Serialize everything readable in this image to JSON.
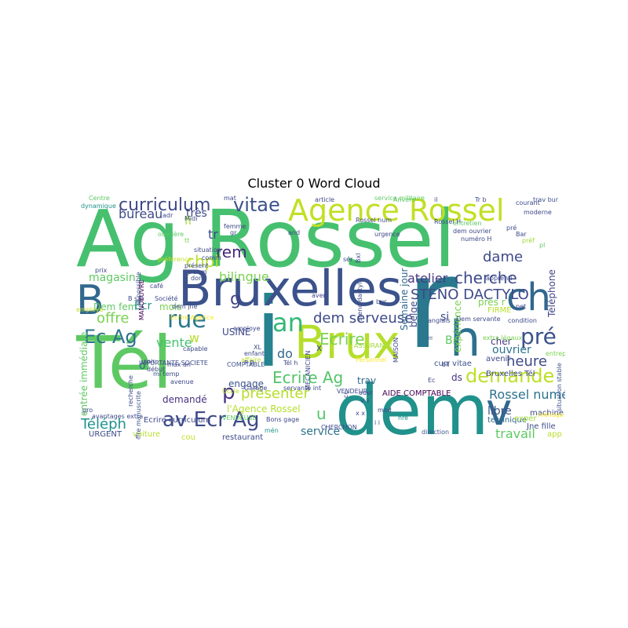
{
  "title": "Cluster 0 Word Cloud",
  "palette": "viridis",
  "words": [
    "Ag Rossel",
    "Tél",
    "i",
    "r",
    "dem",
    "Bruxelles",
    "Brux",
    "h",
    "ch",
    "Agence Rossel",
    "curriculum",
    "vitae",
    "B",
    "an",
    "rue",
    "pré",
    "Ec Ag",
    "av Ecr Ag",
    "demande",
    "Ecrire",
    "dem serveuse",
    "Ecrire Ag",
    "v",
    "rem",
    "chpl",
    "cherche",
    "STENO DACTYLO",
    "présenter",
    "p",
    "bilingue",
    "heure",
    "atelier",
    "vente",
    "Téléph",
    "offre",
    "bureau",
    "dame",
    "travail",
    "magasin",
    "service",
    "l'Agence Rossel",
    "Rossel numéro",
    "ouvrier",
    "libre",
    "Téléphone",
    "expérience",
    "Semaine jour",
    "belge",
    "entrée immédiate",
    "Dem fem",
    "Ecr",
    "mois",
    "très",
    "fi",
    "tr",
    "engage",
    "USINE",
    "demandé",
    "do",
    "si",
    "g",
    "w",
    "u",
    "x",
    "o",
    "ds",
    "trav",
    "près r",
    "FIRME",
    "cher",
    "Br",
    "avenir",
    "curr vitae",
    "Bruxelles Tél",
    "AIDE COMPTABLE",
    "machine",
    "Jne fille",
    "app",
    "technique",
    "expér",
    "URGENT",
    "voiture",
    "restaurant",
    "cou",
    "Ecrire curriculum",
    "VENDEUSE",
    "CHERCHON",
    "mén",
    "Bons gage",
    "Uccle",
    "Garage",
    "servante int",
    "VENDEUR",
    "ouvr",
    "mod",
    "hre",
    "direction",
    "entreprise",
    "situation stable",
    "ménage",
    "Centre",
    "dynamique",
    "mat",
    "adr",
    "Midi",
    "ouvrière",
    "si possible",
    "préférence",
    "prix",
    "café",
    "B sal",
    "Société",
    "dem jne",
    "avantages extra",
    "max an",
    "mi temp",
    "avenue",
    "gro",
    "Ecrire Agence",
    "employé",
    "capable",
    "recherche",
    "offre manuscrite",
    "début",
    "soir",
    "affaire",
    "COMPTABLE",
    "ASSURANCE",
    "Dem servante",
    "anglais",
    "extra légaux",
    "condition",
    "pet",
    "préf",
    "pré",
    "apprenti",
    "trav bur",
    "courant",
    "Tr b",
    "article",
    "service militaire",
    "Rossel num",
    "urgence",
    "sér",
    "Bxl",
    "situation",
    "comm",
    "présent",
    "don",
    "p sem",
    "femme",
    "gr",
    "and",
    "Rossel H",
    "entretien",
    "dem ouvrier",
    "numéro H",
    "pl",
    "Bar",
    "moderne",
    "P R",
    "MECANICIEN",
    "MAISON",
    "steno dactylo",
    "bur",
    "aven",
    "bil",
    "Ec",
    "Tél h",
    "Personnel",
    "employe",
    "enfant",
    "XL",
    "MANOEUVRE",
    "ll",
    "IMPORTANTE SOCIETE",
    "cc",
    "tt",
    "x x",
    "v v",
    "i i",
    "Anvers",
    "il"
  ]
}
